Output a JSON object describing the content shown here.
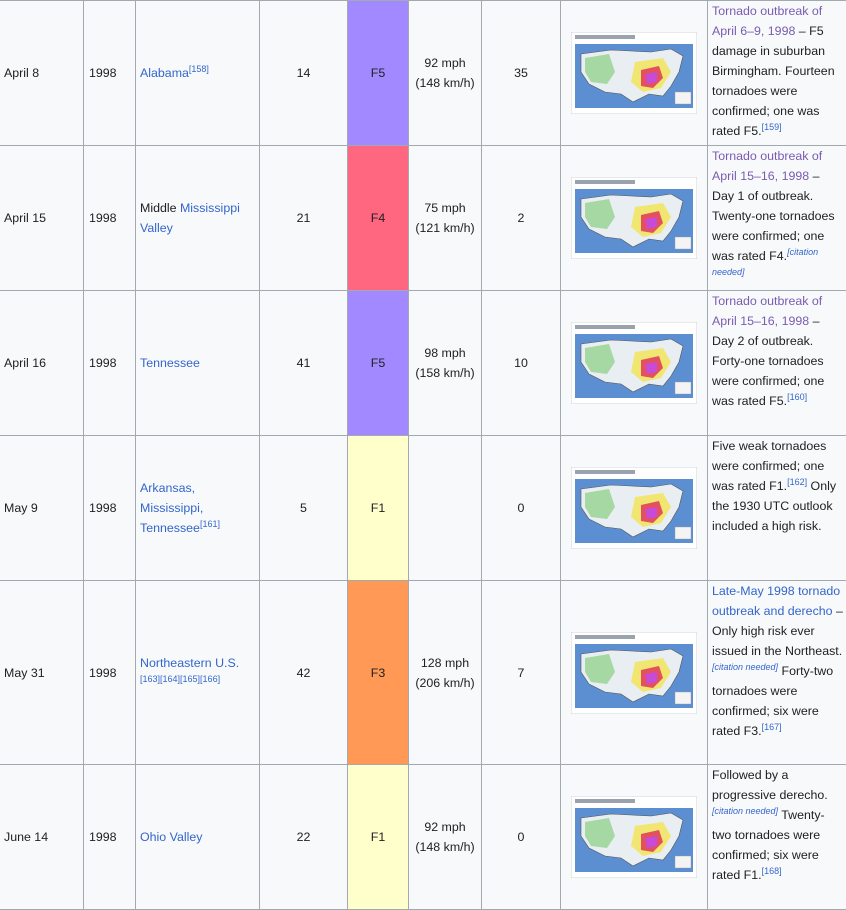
{
  "rows": [
    {
      "date": "April 8",
      "year": "1998",
      "location": [
        {
          "text": "Alabama",
          "link": true
        }
      ],
      "location_refs": "[158]",
      "tornadoes": "14",
      "rating": "F5",
      "rating_color": "#a389ff",
      "wind_mph": "92 mph",
      "wind_kmh": "(148 km/h)",
      "deaths": "35",
      "map_alt": "SPC outlook map April 8 1998",
      "notes": [
        {
          "t": "Tornado outbreak of April 6–9, 1998",
          "c": "visited"
        },
        {
          "t": " – F5 damage in suburban Birmingham. Fourteen tornadoes were confirmed; one was rated F5.",
          "c": "plain"
        },
        {
          "t": "[159]",
          "c": "sup"
        }
      ]
    },
    {
      "date": "April 15",
      "year": "1998",
      "location": [
        {
          "text": "Middle ",
          "link": false
        },
        {
          "text": "Mississippi Valley",
          "link": true
        }
      ],
      "location_refs": "",
      "tornadoes": "21",
      "rating": "F4",
      "rating_color": "#ff6680",
      "wind_mph": "75 mph",
      "wind_kmh": "(121 km/h)",
      "deaths": "2",
      "map_alt": "SPC outlook map April 15 1998",
      "notes": [
        {
          "t": "Tornado outbreak of April 15–16, 1998",
          "c": "visited"
        },
        {
          "t": " – Day 1 of outbreak. Twenty-one tornadoes were confirmed; one was rated F4.",
          "c": "plain"
        },
        {
          "t": "[citation needed]",
          "c": "cn"
        }
      ]
    },
    {
      "date": "April 16",
      "year": "1998",
      "location": [
        {
          "text": "Tennessee",
          "link": true
        }
      ],
      "location_refs": "",
      "tornadoes": "41",
      "rating": "F5",
      "rating_color": "#a389ff",
      "wind_mph": "98 mph",
      "wind_kmh": "(158 km/h)",
      "deaths": "10",
      "map_alt": "SPC outlook map April 16 1998",
      "notes": [
        {
          "t": "Tornado outbreak of April 15–16, 1998",
          "c": "visited"
        },
        {
          "t": " – Day 2 of outbreak. Forty-one tornadoes were confirmed; one was rated F5.",
          "c": "plain"
        },
        {
          "t": "[160]",
          "c": "sup"
        }
      ]
    },
    {
      "date": "May 9",
      "year": "1998",
      "location": [
        {
          "text": "Arkansas, Mississippi, Tennessee",
          "link": true
        }
      ],
      "location_refs": "[161]",
      "tornadoes": "5",
      "rating": "F1",
      "rating_color": "#ffffcc",
      "wind_mph": "",
      "wind_kmh": "",
      "deaths": "0",
      "map_alt": "SPC outlook map May 9 1998",
      "notes": [
        {
          "t": "Five weak tornadoes were confirmed; one was rated F1.",
          "c": "plain"
        },
        {
          "t": "[162]",
          "c": "sup"
        },
        {
          "t": " Only the 1930 UTC outlook included a high risk.",
          "c": "plain"
        }
      ]
    },
    {
      "date": "May 31",
      "year": "1998",
      "location": [
        {
          "text": "Northeastern U.S.",
          "link": true
        }
      ],
      "location_refs": "[163][164][165][166]",
      "tornadoes": "42",
      "rating": "F3",
      "rating_color": "#ff9955",
      "wind_mph": "128 mph",
      "wind_kmh": "(206 km/h)",
      "deaths": "7",
      "map_alt": "SPC outlook map May 31 1998",
      "notes": [
        {
          "t": "Late-May 1998 tornado outbreak and derecho",
          "c": "link"
        },
        {
          "t": " – Only high risk ever issued in the Northeast.",
          "c": "plain"
        },
        {
          "t": "[citation needed]",
          "c": "cn"
        },
        {
          "t": " Forty-two tornadoes were confirmed; six were rated F3.",
          "c": "plain"
        },
        {
          "t": "[167]",
          "c": "sup"
        }
      ]
    },
    {
      "date": "June 14",
      "year": "1998",
      "location": [
        {
          "text": "Ohio Valley",
          "link": true
        }
      ],
      "location_refs": "",
      "tornadoes": "22",
      "rating": "F1",
      "rating_color": "#ffffcc",
      "wind_mph": "92 mph",
      "wind_kmh": "(148 km/h)",
      "deaths": "0",
      "map_alt": "SPC outlook map June 14 1998",
      "notes": [
        {
          "t": "Followed by a progressive derecho.",
          "c": "plain"
        },
        {
          "t": "[citation needed]",
          "c": "cn"
        },
        {
          "t": " Twenty-two tornadoes were confirmed; six were rated F1.",
          "c": "plain"
        },
        {
          "t": "[168]",
          "c": "sup"
        }
      ]
    }
  ]
}
